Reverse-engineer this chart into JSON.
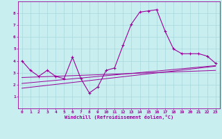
{
  "title": "",
  "xlabel": "Windchill (Refroidissement éolien,°C)",
  "ylabel": "",
  "bg_color": "#c8eef0",
  "line_color": "#990099",
  "grid_color": "#a8d8dc",
  "xlim": [
    -0.5,
    23.5
  ],
  "ylim": [
    0,
    9
  ],
  "xticks": [
    0,
    1,
    2,
    3,
    4,
    5,
    6,
    7,
    8,
    9,
    10,
    11,
    12,
    13,
    14,
    15,
    16,
    17,
    18,
    19,
    20,
    21,
    22,
    23
  ],
  "yticks": [
    1,
    2,
    3,
    4,
    5,
    6,
    7,
    8
  ],
  "curve1_x": [
    0,
    1,
    2,
    3,
    4,
    5,
    6,
    7,
    8,
    9,
    10,
    11,
    12,
    13,
    14,
    15,
    16,
    17,
    18,
    19,
    20,
    21,
    22,
    23
  ],
  "curve1_y": [
    4.0,
    3.2,
    2.7,
    3.2,
    2.7,
    2.5,
    4.3,
    2.5,
    1.3,
    1.8,
    3.2,
    3.4,
    5.3,
    7.1,
    8.1,
    8.2,
    8.3,
    6.5,
    5.0,
    4.6,
    4.6,
    4.6,
    4.4,
    3.8
  ],
  "trend1_x": [
    0,
    23
  ],
  "trend1_y": [
    2.6,
    3.2
  ],
  "trend2_x": [
    0,
    23
  ],
  "trend2_y": [
    2.1,
    3.6
  ],
  "trend3_x": [
    0,
    23
  ],
  "trend3_y": [
    1.7,
    3.55
  ]
}
